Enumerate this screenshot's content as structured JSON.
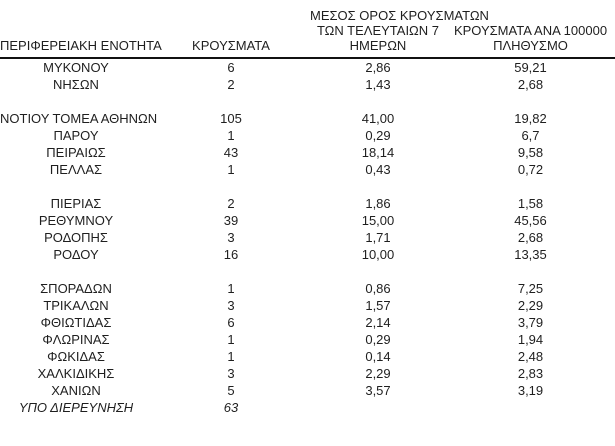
{
  "table": {
    "headers": {
      "region": "ΠΕΡΙΦΕΡΕΙΑΚΗ ΕΝΟΤΗΤΑ",
      "cases": "ΚΡΟΥΣΜΑΤΑ",
      "avg7_line1": "ΜΕΣΟΣ ΟΡΟΣ ΚΡΟΥΣΜΑΤΩΝ",
      "avg7_line2": "ΤΩΝ ΤΕΛΕΥΤΑΙΩΝ 7",
      "avg7_line3": "ΗΜΕΡΩΝ",
      "per100k_line1": "ΚΡΟΥΣΜΑΤΑ ΑΝΑ 100000",
      "per100k_line2": "ΠΛΗΘΥΣΜΟ"
    },
    "rows": [
      {
        "region": "ΜΥΚΟΝΟΥ",
        "cases": "6",
        "avg7": "2,86",
        "per100k": "59,21"
      },
      {
        "region": "ΝΗΣΩΝ",
        "cases": "2",
        "avg7": "1,43",
        "per100k": "2,68"
      },
      {
        "spacer": true
      },
      {
        "region": "ΝΟΤΙΟΥ ΤΟΜΕΑ ΑΘΗΝΩΝ",
        "cases": "105",
        "avg7": "41,00",
        "per100k": "19,82"
      },
      {
        "region": "ΠΑΡΟΥ",
        "cases": "1",
        "avg7": "0,29",
        "per100k": "6,7"
      },
      {
        "region": "ΠΕΙΡΑΙΩΣ",
        "cases": "43",
        "avg7": "18,14",
        "per100k": "9,58"
      },
      {
        "region": "ΠΕΛΛΑΣ",
        "cases": "1",
        "avg7": "0,43",
        "per100k": "0,72"
      },
      {
        "spacer": true
      },
      {
        "region": "ΠΙΕΡΙΑΣ",
        "cases": "2",
        "avg7": "1,86",
        "per100k": "1,58"
      },
      {
        "region": "ΡΕΘΥΜΝΟΥ",
        "cases": "39",
        "avg7": "15,00",
        "per100k": "45,56"
      },
      {
        "region": "ΡΟΔΟΠΗΣ",
        "cases": "3",
        "avg7": "1,71",
        "per100k": "2,68"
      },
      {
        "region": "ΡΟΔΟΥ",
        "cases": "16",
        "avg7": "10,00",
        "per100k": "13,35"
      },
      {
        "spacer": true
      },
      {
        "region": "ΣΠΟΡΑΔΩΝ",
        "cases": "1",
        "avg7": "0,86",
        "per100k": "7,25"
      },
      {
        "region": "ΤΡΙΚΑΛΩΝ",
        "cases": "3",
        "avg7": "1,57",
        "per100k": "2,29"
      },
      {
        "region": "ΦΘΙΩΤΙΔΑΣ",
        "cases": "6",
        "avg7": "2,14",
        "per100k": "3,79"
      },
      {
        "region": "ΦΛΩΡΙΝΑΣ",
        "cases": "1",
        "avg7": "0,29",
        "per100k": "1,94"
      },
      {
        "region": "ΦΩΚΙΔΑΣ",
        "cases": "1",
        "avg7": "0,14",
        "per100k": "2,48"
      },
      {
        "region": "ΧΑΛΚΙΔΙΚΗΣ",
        "cases": "3",
        "avg7": "2,29",
        "per100k": "2,83"
      },
      {
        "region": "ΧΑΝΙΩΝ",
        "cases": "5",
        "avg7": "3,57",
        "per100k": "3,19"
      },
      {
        "region": "ΥΠΟ ΔΙΕΡΕΥΝΗΣΗ",
        "cases": "63",
        "avg7": "",
        "per100k": "",
        "italic": true
      }
    ]
  }
}
